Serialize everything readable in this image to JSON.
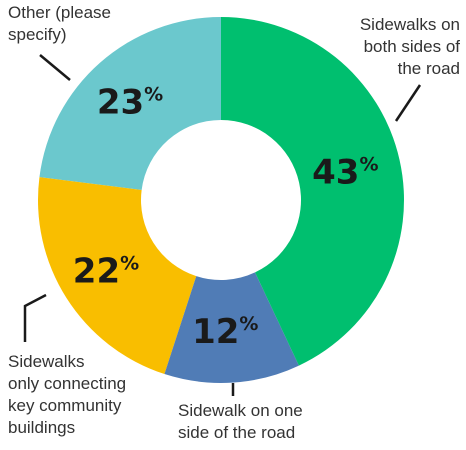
{
  "chart_data": {
    "type": "donut",
    "categories": [
      "Sidewalks on\nboth sides of\nthe road",
      "Sidewalk on one\nside of the road",
      "Sidewalks\nonly connecting\nkey community\nbuildings",
      "Other (please\nspecify)"
    ],
    "values": [
      43,
      12,
      22,
      23
    ],
    "value_labels": [
      "43%",
      "12%",
      "22%",
      "23%"
    ],
    "colors": [
      "#00bf6f",
      "#507cb6",
      "#f9be00",
      "#6bc8cd"
    ]
  }
}
